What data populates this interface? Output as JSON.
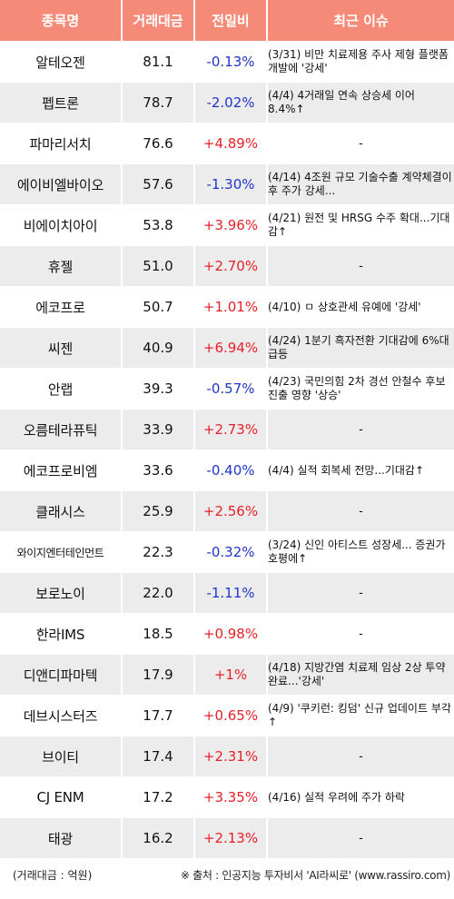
{
  "header": {
    "name": "종목명",
    "volume": "거래대금",
    "change": "전일비",
    "issue": "최근 이슈"
  },
  "rows": [
    {
      "name": "알테오젠",
      "volume": "81.1",
      "change": "-0.13%",
      "issue": "(3/31) 비만 치료제용 주사 제형 플랫폼 개발에 '강세'"
    },
    {
      "name": "펩트론",
      "volume": "78.7",
      "change": "-2.02%",
      "issue": "(4/4) 4거래일 연속 상승세 이어 8.4%↑"
    },
    {
      "name": "파마리서치",
      "volume": "76.6",
      "change": "+4.89%",
      "issue": "-"
    },
    {
      "name": "에이비엘바이오",
      "volume": "57.6",
      "change": "-1.30%",
      "issue": "(4/14) 4조원 규모 기술수출 계약체결이후 주가 강세..."
    },
    {
      "name": "비에이치아이",
      "volume": "53.8",
      "change": "+3.96%",
      "issue": "(4/21) 원전 및 HRSG 수주 확대...기대감↑"
    },
    {
      "name": "휴젤",
      "volume": "51.0",
      "change": "+2.70%",
      "issue": "-"
    },
    {
      "name": "에코프로",
      "volume": "50.7",
      "change": "+1.01%",
      "issue": "(4/10) ㅁ 상호관세 유예에 '강세'"
    },
    {
      "name": "씨젠",
      "volume": "40.9",
      "change": "+6.94%",
      "issue": "(4/24) 1분기 흑자전환 기대감에 6%대 급등"
    },
    {
      "name": "안랩",
      "volume": "39.3",
      "change": "-0.57%",
      "issue": "(4/23) 국민의힘 2차 경선 안철수 후보 진출 영향 '상승'"
    },
    {
      "name": "오름테라퓨틱",
      "volume": "33.9",
      "change": "+2.73%",
      "issue": "-"
    },
    {
      "name": "에코프로비엠",
      "volume": "33.6",
      "change": "-0.40%",
      "issue": "(4/4) 실적 회복세 전망...기대감↑"
    },
    {
      "name": "클래시스",
      "volume": "25.9",
      "change": "+2.56%",
      "issue": "-"
    },
    {
      "name": "와이지엔터테인먼트",
      "volume": "22.3",
      "change": "-0.32%",
      "issue": "(3/24) 신인 아티스트 성장세... 증권가 호평에↑"
    },
    {
      "name": "보로노이",
      "volume": "22.0",
      "change": "-1.11%",
      "issue": "-"
    },
    {
      "name": "한라IMS",
      "volume": "18.5",
      "change": "+0.98%",
      "issue": "-"
    },
    {
      "name": "디앤디파마텍",
      "volume": "17.9",
      "change": "+1%",
      "issue": "(4/18) 지방간염 치료제 임상 2상 투약 완료...'강세'"
    },
    {
      "name": "데브시스터즈",
      "volume": "17.7",
      "change": "+0.65%",
      "issue": "(4/9) '쿠키런: 킹덤' 신규 업데이트 부각↑"
    },
    {
      "name": "브이티",
      "volume": "17.4",
      "change": "+2.31%",
      "issue": "-"
    },
    {
      "name": "CJ ENM",
      "volume": "17.2",
      "change": "+3.35%",
      "issue": "(4/16) 실적 우려에 주가 하락"
    },
    {
      "name": "태광",
      "volume": "16.2",
      "change": "+2.13%",
      "issue": "-"
    }
  ],
  "footer": {
    "unit": "(거래대금 : 억원)",
    "source": "※ 출처 : 인공지능 투자비서 'AI라씨로' (www.rassiro.com)"
  },
  "colors": {
    "header_bg": "#f48a77",
    "row_stripe": "#ececec",
    "positive": "#e8202a",
    "negative": "#2035c8"
  }
}
